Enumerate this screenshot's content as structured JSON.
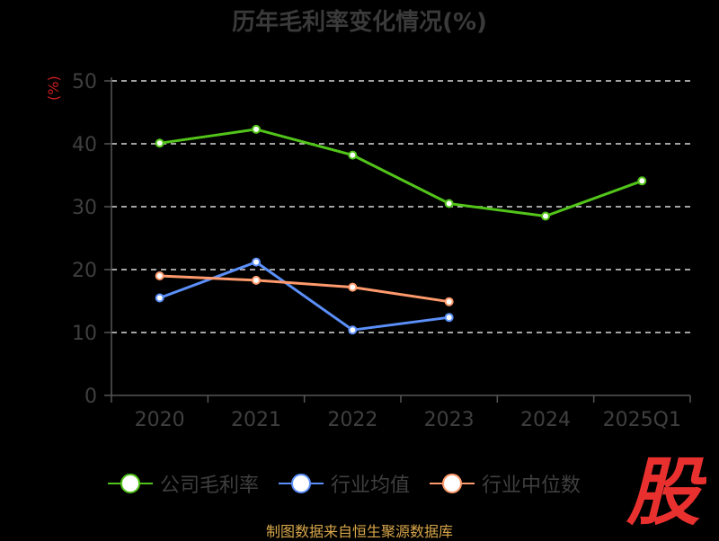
{
  "chart_data": {
    "type": "line",
    "title": "历年毛利率变化情况(%)",
    "ylabel": "(%)",
    "xlabel": "",
    "categories": [
      "2020",
      "2021",
      "2022",
      "2023",
      "2024",
      "2025Q1"
    ],
    "ylim": [
      0,
      50
    ],
    "yticks": [
      "0",
      "10",
      "20",
      "30",
      "40",
      "50"
    ],
    "grid": true,
    "legend_position": "bottom",
    "series": [
      {
        "name": "公司毛利率",
        "color": "#52c41a",
        "values": [
          40.1,
          42.3,
          38.2,
          30.5,
          28.5,
          34.1
        ]
      },
      {
        "name": "行业均值",
        "color": "#5b8ff9",
        "values": [
          15.5,
          21.2,
          10.4,
          12.4,
          null,
          null
        ]
      },
      {
        "name": "行业中位数",
        "color": "#ff9a6c",
        "values": [
          19.0,
          18.3,
          17.2,
          14.9,
          null,
          null
        ]
      }
    ]
  },
  "source": "制图数据来自恒生聚源数据库",
  "logo": "股"
}
